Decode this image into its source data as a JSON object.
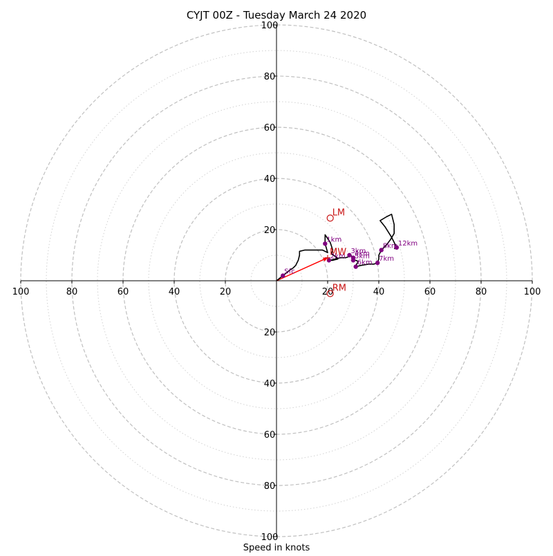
{
  "chart_data": {
    "type": "hodograph",
    "title": "CYJT 00Z - Tuesday March 24 2020",
    "xlabel": "Speed in knots",
    "ylabel": "",
    "xlim": [
      -100,
      100
    ],
    "ylim": [
      -100,
      100
    ],
    "units": "knots",
    "rings_major": [
      20,
      40,
      60,
      80,
      100
    ],
    "rings_minor": [
      10,
      30,
      50,
      70,
      90
    ],
    "tick_labels": {
      "top": [
        {
          "v": 20,
          "label": "20"
        },
        {
          "v": 40,
          "label": "40"
        },
        {
          "v": 60,
          "label": "60"
        },
        {
          "v": 80,
          "label": "80"
        },
        {
          "v": 100,
          "label": "100"
        }
      ],
      "bottom": [
        {
          "v": 20,
          "label": "20"
        },
        {
          "v": 40,
          "label": "40"
        },
        {
          "v": 60,
          "label": "60"
        },
        {
          "v": 80,
          "label": "80"
        },
        {
          "v": 100,
          "label": "100"
        }
      ],
      "left": [
        {
          "v": 100,
          "label": "100"
        },
        {
          "v": 80,
          "label": "80"
        },
        {
          "v": 60,
          "label": "60"
        },
        {
          "v": 40,
          "label": "40"
        },
        {
          "v": 20,
          "label": "20"
        }
      ],
      "right": [
        {
          "v": 20,
          "label": "20"
        },
        {
          "v": 40,
          "label": "40"
        },
        {
          "v": 60,
          "label": "60"
        },
        {
          "v": 80,
          "label": "80"
        },
        {
          "v": 100,
          "label": "100"
        }
      ]
    },
    "series": [
      {
        "color": "#000000",
        "points": [
          [
            0,
            0
          ],
          [
            2.5,
            2
          ],
          [
            5,
            4
          ],
          [
            6.5,
            5
          ],
          [
            7.5,
            6
          ],
          [
            8.5,
            8
          ],
          [
            9,
            10
          ],
          [
            9,
            11.5
          ],
          [
            11,
            12
          ],
          [
            15,
            12
          ],
          [
            18,
            12
          ],
          [
            20,
            11
          ],
          [
            19,
            14.5
          ],
          [
            19,
            18
          ],
          [
            21,
            15
          ],
          [
            22,
            12
          ],
          [
            21.5,
            10.5
          ],
          [
            23,
            9.5
          ],
          [
            24,
            8.5
          ],
          [
            22,
            8
          ],
          [
            21,
            8
          ],
          [
            25,
            9
          ],
          [
            27,
            9
          ],
          [
            28.5,
            9.5
          ],
          [
            29,
            10
          ],
          [
            30,
            9
          ],
          [
            30,
            8
          ],
          [
            31,
            8
          ],
          [
            32,
            7.5
          ],
          [
            31,
            6
          ],
          [
            31,
            5.5
          ],
          [
            33,
            6
          ],
          [
            36,
            6.5
          ],
          [
            38,
            6.5
          ],
          [
            39.5,
            7
          ],
          [
            40,
            8.5
          ],
          [
            40,
            10
          ],
          [
            41,
            12
          ],
          [
            43,
            14
          ],
          [
            44.5,
            16
          ],
          [
            46,
            18.5
          ],
          [
            46,
            20.5
          ],
          [
            46,
            22
          ],
          [
            45,
            26
          ],
          [
            43,
            25
          ],
          [
            40.5,
            23.5
          ],
          [
            42.5,
            21
          ],
          [
            45,
            17
          ],
          [
            46,
            15
          ],
          [
            47,
            13
          ],
          [
            46,
            12.5
          ]
        ]
      }
    ],
    "height_markers": [
      {
        "label": "Sfc",
        "u": 2.5,
        "v": 2
      },
      {
        "label": "1km",
        "u": 19,
        "v": 14.5
      },
      {
        "label": "2km",
        "u": 20.5,
        "v": 8
      },
      {
        "label": "3km",
        "u": 28.5,
        "v": 10
      },
      {
        "label": "4km",
        "u": 30,
        "v": 9
      },
      {
        "label": "5km",
        "u": 30,
        "v": 8
      },
      {
        "label": "6km",
        "u": 31,
        "v": 5.5
      },
      {
        "label": "7km",
        "u": 39.5,
        "v": 7
      },
      {
        "label": "8km",
        "u": 41,
        "v": 12
      },
      {
        "label": "12km",
        "u": 47,
        "v": 13
      }
    ],
    "storm_motion": [
      {
        "label": "LM",
        "u": 21,
        "v": 24.5
      },
      {
        "label": "MW",
        "u": 20,
        "v": 9
      },
      {
        "label": "RM",
        "u": 21,
        "v": -5
      }
    ],
    "mean_wind_vector": {
      "from": [
        0,
        0
      ],
      "to": [
        20,
        9
      ],
      "color": "#ff0000"
    },
    "colors": {
      "hodograph_line": "#000000",
      "height_marker": "#800080",
      "storm_motion": "#c81414",
      "mean_wind_arrow": "#ff0000",
      "rings": "#bfbfbf"
    }
  }
}
